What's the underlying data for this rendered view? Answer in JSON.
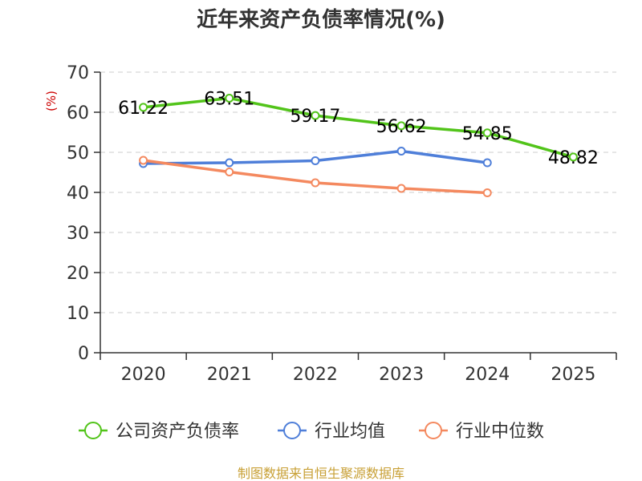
{
  "chart_data": {
    "type": "line",
    "title": "近年来资产负债率情况(%)",
    "ylabel": "(%)",
    "xlabel": "",
    "ylim": [
      0,
      70
    ],
    "yticks": [
      0,
      10,
      20,
      30,
      40,
      50,
      60,
      70
    ],
    "categories": [
      "2020",
      "2021",
      "2022",
      "2023",
      "2024",
      "2025"
    ],
    "grid": true,
    "legend_position": "bottom",
    "series": [
      {
        "name": "公司资产负债率",
        "color": "#52c41a",
        "values": [
          61.22,
          63.51,
          59.17,
          56.62,
          54.85,
          48.82
        ],
        "labels": [
          "61.22",
          "63.51",
          "59.17",
          "56.62",
          "54.85",
          "48.82"
        ]
      },
      {
        "name": "行业均值",
        "color": "#4f7fd9",
        "values": [
          47.2,
          47.4,
          47.9,
          50.3,
          47.4,
          null
        ]
      },
      {
        "name": "行业中位数",
        "color": "#f4895f",
        "values": [
          48.0,
          45.1,
          42.4,
          41.0,
          39.9,
          null
        ]
      }
    ]
  },
  "source": "制图数据来自恒生聚源数据库"
}
